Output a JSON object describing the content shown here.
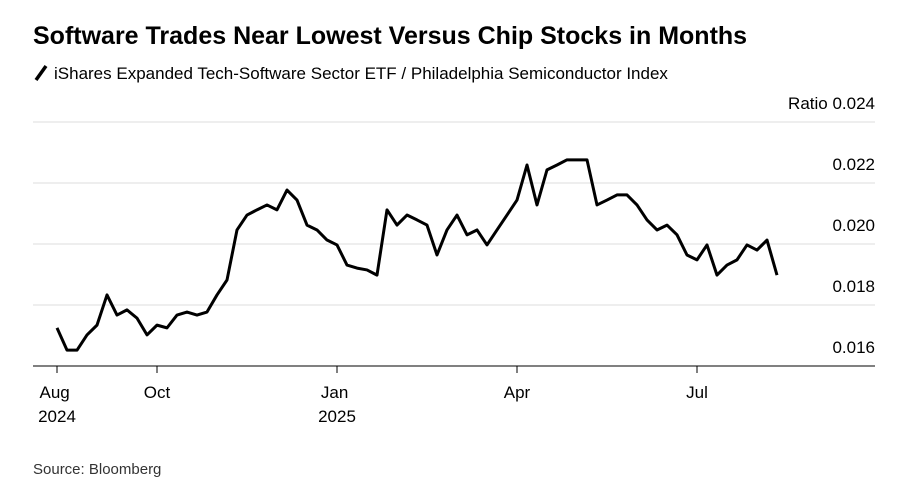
{
  "chart_data": {
    "type": "line",
    "title": "Software Trades Near Lowest Versus Chip Stocks in Months",
    "source": "Source: Bloomberg",
    "categories": [
      "Aug 2024",
      null,
      null,
      null,
      null,
      null,
      null,
      null,
      null,
      null,
      "Oct",
      null,
      null,
      null,
      null,
      null,
      null,
      null,
      null,
      null,
      null,
      null,
      null,
      null,
      null,
      null,
      null,
      null,
      "Jan 2025",
      null,
      null,
      null,
      null,
      null,
      null,
      null,
      null,
      null,
      null,
      null,
      null,
      null,
      null,
      null,
      null,
      null,
      "Apr",
      null,
      null,
      null,
      null,
      null,
      null,
      null,
      null,
      null,
      null,
      null,
      null,
      null,
      null,
      null,
      null,
      null,
      "Jul",
      null,
      null,
      null,
      null,
      null,
      null,
      null,
      null
    ],
    "series": [
      {
        "name": "iShares Expanded Tech-Software Sector ETF / Philadelphia Semiconductor Index",
        "color": "#000000",
        "values": [
          0.01725,
          0.01652,
          0.01652,
          0.01702,
          0.01734,
          0.01833,
          0.01767,
          0.01784,
          0.01757,
          0.01702,
          0.01734,
          0.01725,
          0.01767,
          0.01777,
          0.01767,
          0.01777,
          0.01833,
          0.01882,
          0.02046,
          0.02095,
          0.02112,
          0.02128,
          0.02112,
          0.02177,
          0.02144,
          0.02062,
          0.02046,
          0.02013,
          0.01997,
          0.01931,
          0.01921,
          0.01915,
          0.01898,
          0.02112,
          0.02062,
          0.02095,
          0.02079,
          0.02062,
          0.01964,
          0.02046,
          0.02095,
          0.0203,
          0.02046,
          0.01997,
          0.02046,
          0.02095,
          0.02144,
          0.02259,
          0.02128,
          0.02243,
          0.02259,
          0.02276,
          0.02276,
          0.02276,
          0.02128,
          0.02144,
          0.02161,
          0.02161,
          0.02128,
          0.02079,
          0.02046,
          0.02062,
          0.0203,
          0.01964,
          0.01948,
          0.01997,
          0.01898,
          0.01931,
          0.01948,
          0.01997,
          0.0198,
          0.02013,
          0.01898
        ]
      }
    ],
    "ylim": [
      0.016,
      0.024
    ],
    "yticks": [
      0.016,
      0.018,
      {
        "value": 0.02,
        "label": "0.020"
      },
      0.022,
      {
        "value": 0.024,
        "label": "Ratio 0.024"
      }
    ],
    "grid": true
  }
}
